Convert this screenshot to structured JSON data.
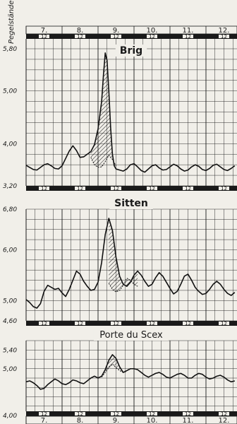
{
  "chart_data": {
    "type": "line",
    "ylabel": "Pegelstände",
    "day_labels": [
      "7.",
      "8.",
      "9.",
      "10.",
      "11.",
      "12."
    ],
    "hour_label": "12",
    "panels": [
      {
        "title": "Brig",
        "ylim": [
          3.2,
          5.8
        ],
        "yticks": [
          "5,80",
          "5,00",
          "4,00",
          "3,20"
        ],
        "ytick_values": [
          5.8,
          5.0,
          4.0,
          3.2
        ],
        "x": [
          0,
          0.1,
          0.2,
          0.3,
          0.4,
          0.5,
          0.6,
          0.7,
          0.8,
          0.9,
          1.0,
          1.1,
          1.2,
          1.3,
          1.4,
          1.5,
          1.6,
          1.7,
          1.8,
          1.9,
          2.0,
          2.1,
          2.15,
          2.2,
          2.25,
          2.3,
          2.35,
          2.4,
          2.45,
          2.5,
          2.6,
          2.7,
          2.8,
          2.9,
          3.0,
          3.1,
          3.2,
          3.3,
          3.4,
          3.5,
          3.6,
          3.7,
          3.8,
          3.9,
          4.0,
          4.1,
          4.2,
          4.3,
          4.4,
          4.5,
          4.6,
          4.7,
          4.8,
          4.9,
          5.0,
          5.1,
          5.2,
          5.3,
          5.4,
          5.5,
          5.6,
          5.7,
          5.8,
          5.9,
          6.0
        ],
        "y": [
          3.59,
          3.55,
          3.51,
          3.5,
          3.55,
          3.6,
          3.62,
          3.58,
          3.53,
          3.52,
          3.58,
          3.72,
          3.86,
          3.96,
          3.87,
          3.74,
          3.75,
          3.8,
          3.85,
          3.98,
          4.28,
          4.8,
          5.3,
          5.72,
          5.58,
          5.0,
          4.3,
          3.8,
          3.58,
          3.52,
          3.5,
          3.48,
          3.52,
          3.6,
          3.62,
          3.56,
          3.49,
          3.46,
          3.52,
          3.58,
          3.6,
          3.54,
          3.5,
          3.51,
          3.56,
          3.61,
          3.58,
          3.52,
          3.48,
          3.5,
          3.56,
          3.6,
          3.57,
          3.51,
          3.49,
          3.53,
          3.59,
          3.61,
          3.56,
          3.51,
          3.49,
          3.53,
          3.58,
          3.6,
          3.57
        ],
        "normal_x": [
          1.8,
          1.9,
          2.0,
          2.1,
          2.2,
          2.3,
          2.4,
          2.5
        ],
        "normal_y": [
          3.74,
          3.6,
          3.55,
          3.56,
          3.66,
          3.78,
          3.7,
          3.58
        ]
      },
      {
        "title": "Sitten",
        "ylim": [
          4.6,
          6.8
        ],
        "yticks": [
          "6,80",
          "6,00",
          "5,00",
          "4,60"
        ],
        "ytick_values": [
          6.8,
          6.0,
          5.0,
          4.6
        ],
        "x": [
          0,
          0.1,
          0.2,
          0.3,
          0.4,
          0.5,
          0.6,
          0.7,
          0.8,
          0.9,
          1.0,
          1.1,
          1.2,
          1.3,
          1.4,
          1.5,
          1.6,
          1.7,
          1.8,
          1.9,
          2.0,
          2.1,
          2.2,
          2.3,
          2.4,
          2.5,
          2.6,
          2.7,
          2.8,
          2.9,
          3.0,
          3.1,
          3.2,
          3.3,
          3.4,
          3.5,
          3.6,
          3.7,
          3.8,
          3.9,
          4.0,
          4.1,
          4.2,
          4.3,
          4.4,
          4.5,
          4.6,
          4.7,
          4.8,
          4.9,
          5.0,
          5.1,
          5.2,
          5.3,
          5.4,
          5.5,
          5.6,
          5.7,
          5.8,
          5.9,
          6.0
        ],
        "y": [
          5.02,
          4.96,
          4.88,
          4.85,
          4.94,
          5.18,
          5.3,
          5.26,
          5.22,
          5.24,
          5.15,
          5.08,
          5.22,
          5.4,
          5.58,
          5.52,
          5.38,
          5.28,
          5.2,
          5.22,
          5.36,
          5.75,
          6.3,
          6.62,
          6.38,
          5.85,
          5.48,
          5.32,
          5.28,
          5.36,
          5.5,
          5.58,
          5.5,
          5.38,
          5.28,
          5.32,
          5.45,
          5.55,
          5.48,
          5.36,
          5.24,
          5.13,
          5.18,
          5.32,
          5.48,
          5.52,
          5.4,
          5.26,
          5.18,
          5.12,
          5.14,
          5.22,
          5.32,
          5.38,
          5.32,
          5.22,
          5.14,
          5.1,
          5.16,
          5.26,
          5.34
        ],
        "normal_x": [
          2.3,
          2.4,
          2.5,
          2.6,
          2.7,
          2.8,
          2.9,
          3.0,
          3.1
        ],
        "normal_y": [
          5.34,
          5.22,
          5.17,
          5.2,
          5.3,
          5.44,
          5.4,
          5.32,
          5.28
        ]
      },
      {
        "title": "Porte du Scex",
        "ylim": [
          4.0,
          5.6
        ],
        "yticks": [
          "5,40",
          "5,00",
          "4,00"
        ],
        "ytick_values": [
          5.4,
          5.0,
          4.0
        ],
        "x": [
          0,
          0.1,
          0.2,
          0.3,
          0.4,
          0.5,
          0.6,
          0.7,
          0.8,
          0.9,
          1.0,
          1.1,
          1.2,
          1.3,
          1.4,
          1.5,
          1.6,
          1.7,
          1.8,
          1.9,
          2.0,
          2.1,
          2.2,
          2.3,
          2.4,
          2.5,
          2.6,
          2.7,
          2.8,
          2.9,
          3.0,
          3.1,
          3.2,
          3.3,
          3.4,
          3.5,
          3.6,
          3.7,
          3.8,
          3.9,
          4.0,
          4.1,
          4.2,
          4.3,
          4.4,
          4.5,
          4.6,
          4.7,
          4.8,
          4.9,
          5.0,
          5.1,
          5.2,
          5.3,
          5.4,
          5.5,
          5.6,
          5.7,
          5.8,
          5.9,
          6.0
        ],
        "y": [
          4.72,
          4.74,
          4.7,
          4.64,
          4.56,
          4.58,
          4.66,
          4.72,
          4.78,
          4.74,
          4.68,
          4.66,
          4.7,
          4.76,
          4.74,
          4.7,
          4.68,
          4.74,
          4.8,
          4.84,
          4.8,
          4.84,
          4.98,
          5.18,
          5.3,
          5.22,
          5.04,
          4.92,
          4.96,
          5.0,
          5.0,
          4.98,
          4.92,
          4.86,
          4.82,
          4.86,
          4.9,
          4.92,
          4.88,
          4.82,
          4.8,
          4.84,
          4.88,
          4.9,
          4.86,
          4.8,
          4.8,
          4.86,
          4.9,
          4.88,
          4.82,
          4.78,
          4.8,
          4.84,
          4.86,
          4.82,
          4.76,
          4.72,
          4.74,
          4.78,
          4.8
        ],
        "normal_x": [
          2.1,
          2.2,
          2.3,
          2.4,
          2.5,
          2.6,
          2.7,
          2.8
        ],
        "normal_y": [
          4.82,
          4.92,
          5.02,
          5.1,
          5.02,
          4.96,
          4.92,
          4.94
        ]
      }
    ]
  }
}
